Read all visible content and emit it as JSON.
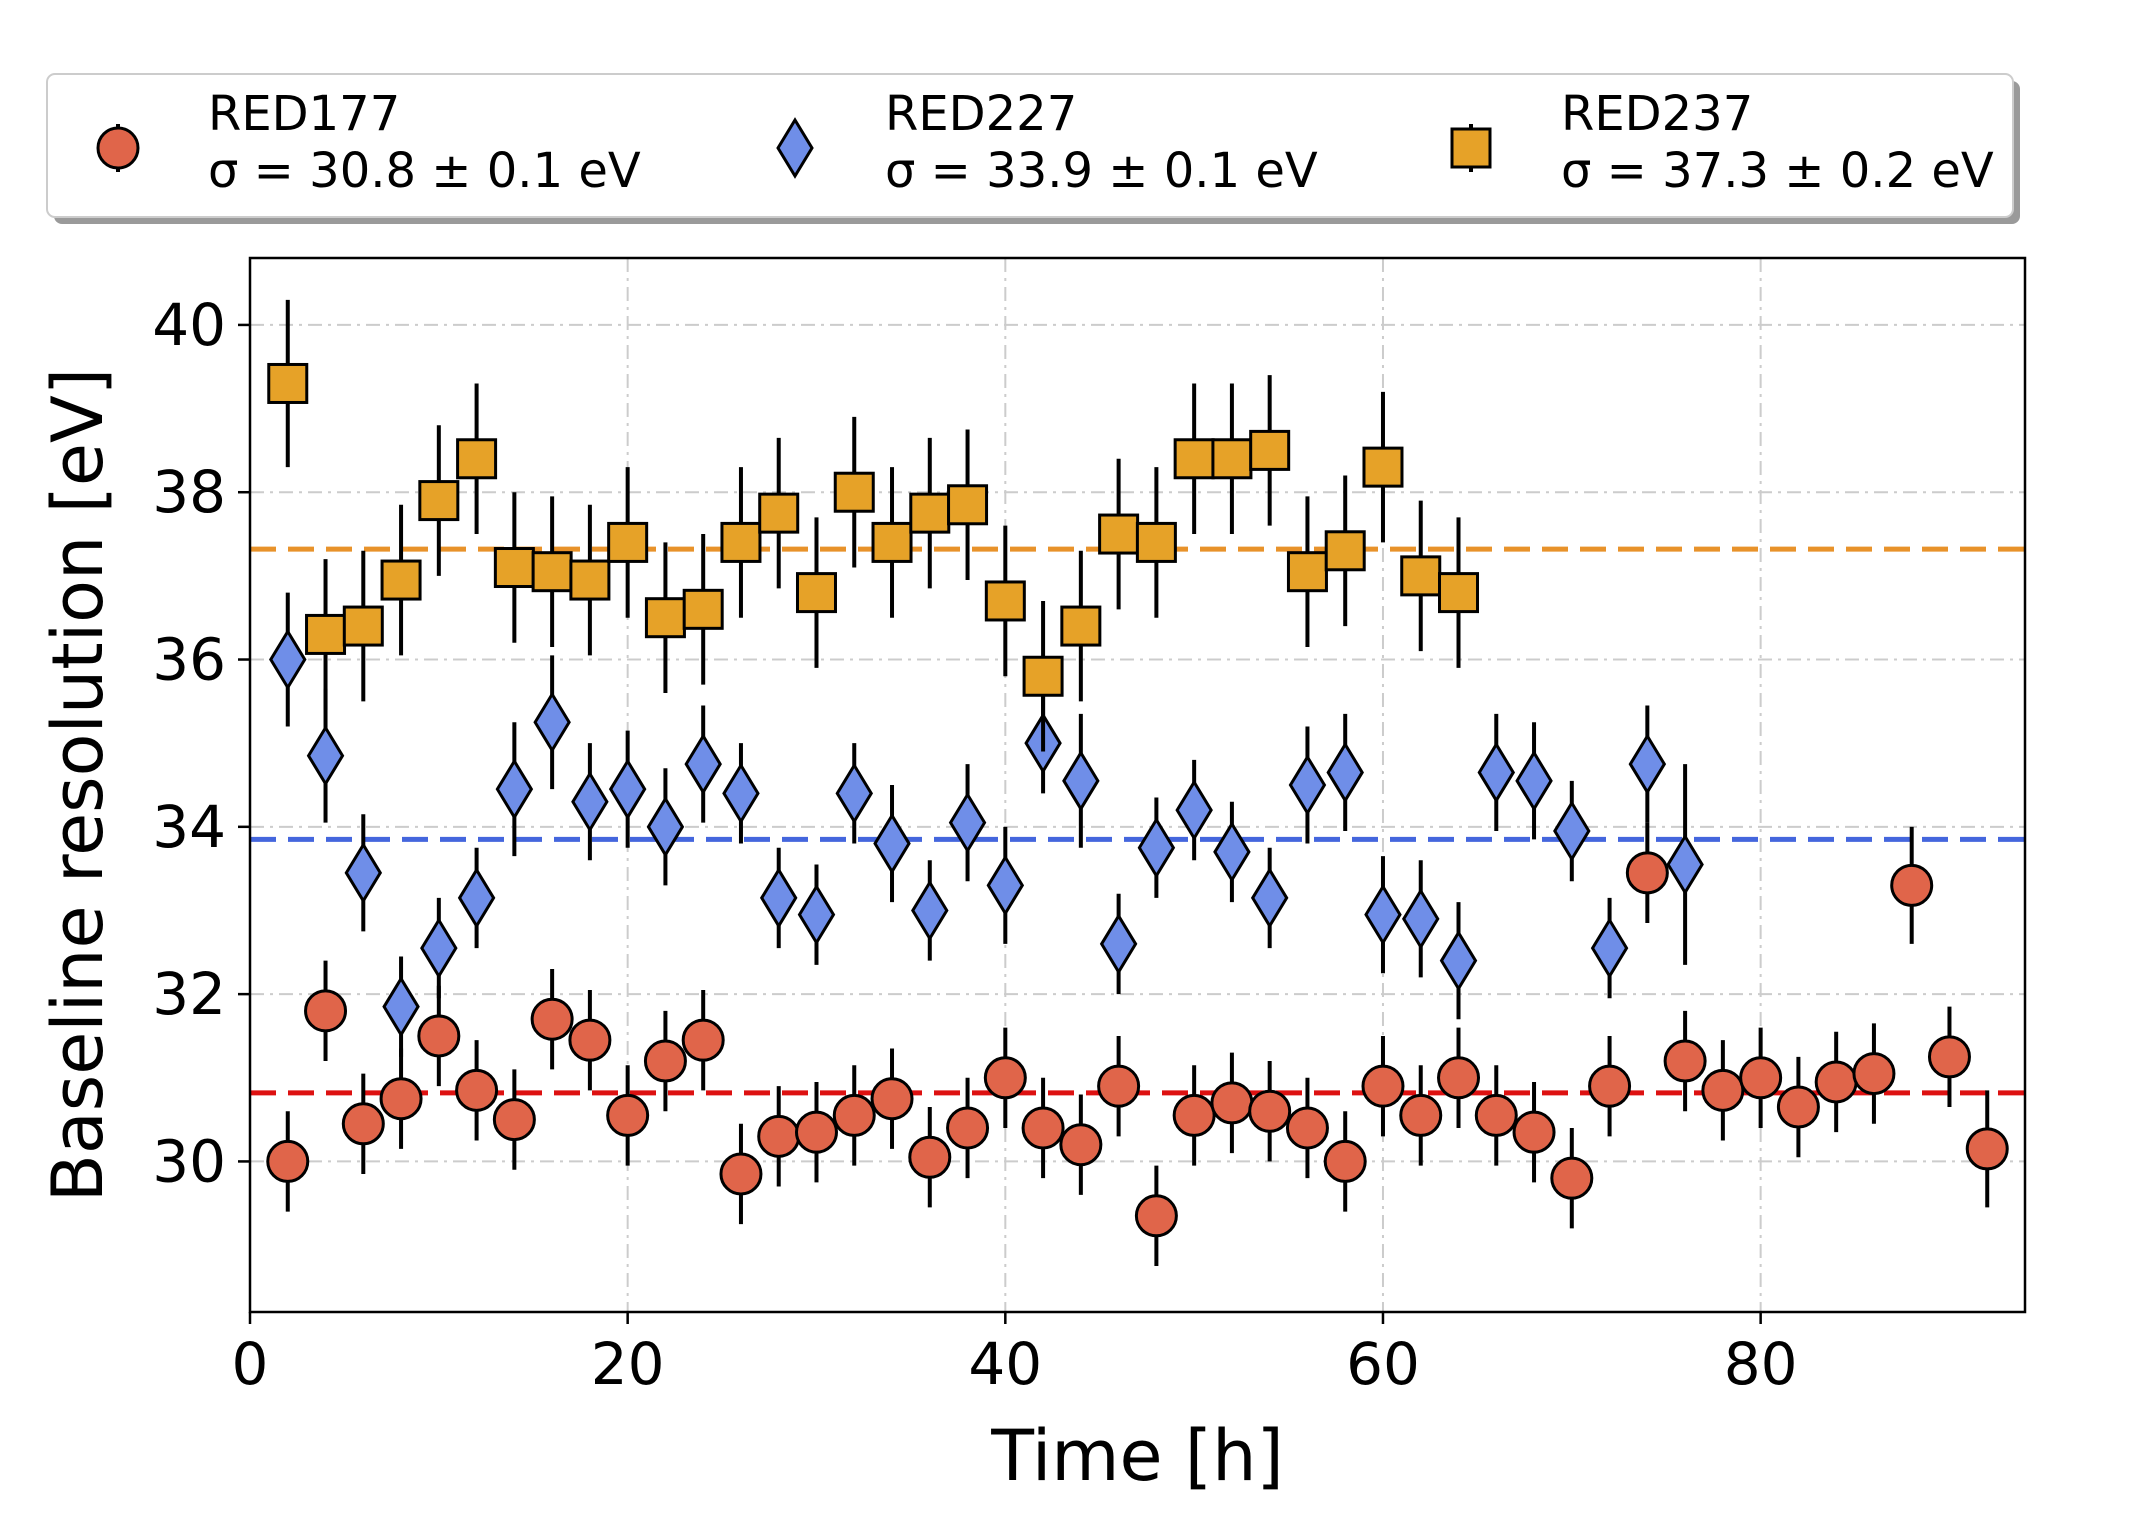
{
  "chart_data": {
    "type": "scatter",
    "title": "",
    "xlabel": "Time [h]",
    "ylabel": "Baseline resolution [eV]",
    "xlim": [
      0,
      94
    ],
    "ylim": [
      28.2,
      40.8
    ],
    "xticks": [
      0,
      20,
      40,
      60,
      80
    ],
    "yticks": [
      30,
      32,
      34,
      36,
      38,
      40
    ],
    "grid": true,
    "legend_position": "top, above plot",
    "series": [
      {
        "name": "RED177",
        "sigma_label": "σ = 30.8 ± 0.1 eV",
        "marker": "circle",
        "color": "#e0654a",
        "mean": 30.82,
        "mean_line_color": "#dd1111",
        "x": [
          2,
          4,
          6,
          8,
          10,
          12,
          14,
          16,
          18,
          20,
          22,
          24,
          26,
          28,
          30,
          32,
          34,
          36,
          38,
          40,
          42,
          44,
          46,
          48,
          50,
          52,
          54,
          56,
          58,
          60,
          62,
          64,
          66,
          68,
          70,
          72,
          74,
          76,
          78,
          80,
          82,
          84,
          86,
          88,
          90,
          92
        ],
        "y": [
          30.0,
          31.8,
          30.45,
          30.75,
          31.5,
          30.85,
          30.5,
          31.7,
          31.45,
          30.55,
          31.2,
          31.45,
          29.85,
          30.3,
          30.35,
          30.55,
          30.75,
          30.05,
          30.4,
          31.0,
          30.4,
          30.2,
          30.9,
          29.35,
          30.55,
          30.7,
          30.6,
          30.4,
          30.0,
          30.9,
          30.55,
          31.0,
          30.55,
          30.35,
          29.8,
          30.9,
          33.45,
          31.2,
          30.85,
          31.0,
          30.65,
          30.95,
          31.05,
          33.3,
          31.25,
          30.15
        ],
        "err": [
          0.6,
          0.6,
          0.6,
          0.6,
          0.6,
          0.6,
          0.6,
          0.6,
          0.6,
          0.6,
          0.6,
          0.6,
          0.6,
          0.6,
          0.6,
          0.6,
          0.6,
          0.6,
          0.6,
          0.6,
          0.6,
          0.6,
          0.6,
          0.6,
          0.6,
          0.6,
          0.6,
          0.6,
          0.6,
          0.6,
          0.6,
          0.6,
          0.6,
          0.6,
          0.6,
          0.6,
          0.6,
          0.6,
          0.6,
          0.6,
          0.6,
          0.6,
          0.6,
          0.7,
          0.6,
          0.7
        ]
      },
      {
        "name": "RED227",
        "sigma_label": "σ = 33.9 ± 0.1 eV",
        "marker": "diamond",
        "color": "#6f8ee8",
        "mean": 33.85,
        "mean_line_color": "#4466dd",
        "x": [
          2,
          4,
          6,
          8,
          10,
          12,
          14,
          16,
          18,
          20,
          22,
          24,
          26,
          28,
          30,
          32,
          34,
          36,
          38,
          40,
          42,
          44,
          46,
          48,
          50,
          52,
          54,
          56,
          58,
          60,
          62,
          64,
          66,
          68,
          70,
          72,
          74,
          76
        ],
        "y": [
          36.0,
          34.85,
          33.45,
          31.85,
          32.55,
          33.15,
          34.45,
          35.25,
          34.3,
          34.45,
          34.0,
          34.75,
          34.4,
          33.15,
          32.95,
          34.4,
          33.8,
          33.0,
          34.05,
          33.3,
          35.0,
          34.55,
          32.6,
          33.75,
          34.2,
          33.7,
          33.15,
          34.5,
          34.65,
          32.95,
          32.9,
          32.4,
          34.65,
          34.55,
          33.95,
          32.55,
          34.75,
          33.55
        ],
        "err": [
          0.8,
          0.8,
          0.7,
          0.6,
          0.6,
          0.6,
          0.8,
          0.8,
          0.7,
          0.7,
          0.7,
          0.7,
          0.6,
          0.6,
          0.6,
          0.6,
          0.7,
          0.6,
          0.7,
          0.7,
          0.6,
          0.8,
          0.6,
          0.6,
          0.6,
          0.6,
          0.6,
          0.7,
          0.7,
          0.7,
          0.7,
          0.7,
          0.7,
          0.7,
          0.6,
          0.6,
          0.7,
          1.2
        ]
      },
      {
        "name": "RED237",
        "sigma_label": "σ = 37.3 ± 0.2 eV",
        "marker": "square",
        "color": "#e6a228",
        "mean": 37.32,
        "mean_line_color": "#e8922a",
        "x": [
          2,
          4,
          6,
          8,
          10,
          12,
          14,
          16,
          18,
          20,
          22,
          24,
          26,
          28,
          30,
          32,
          34,
          36,
          38,
          40,
          42,
          44,
          46,
          48,
          50,
          52,
          54,
          56,
          58,
          60,
          62,
          64
        ],
        "y": [
          39.3,
          36.3,
          36.4,
          36.95,
          37.9,
          38.4,
          37.1,
          37.05,
          36.95,
          37.4,
          36.5,
          36.6,
          37.4,
          37.75,
          36.8,
          38.0,
          37.4,
          37.75,
          37.85,
          36.7,
          35.8,
          36.4,
          37.5,
          37.4,
          38.4,
          38.4,
          38.5,
          37.05,
          37.3,
          38.3,
          37.0,
          36.8
        ]
      }
    ]
  },
  "legend": {
    "entries": [
      {
        "name": "RED177",
        "sigma": "σ = 30.8 ± 0.1 eV"
      },
      {
        "name": "RED227",
        "sigma": "σ = 33.9 ± 0.1 eV"
      },
      {
        "name": "RED237",
        "sigma": "σ = 37.3 ± 0.2 eV"
      }
    ]
  }
}
